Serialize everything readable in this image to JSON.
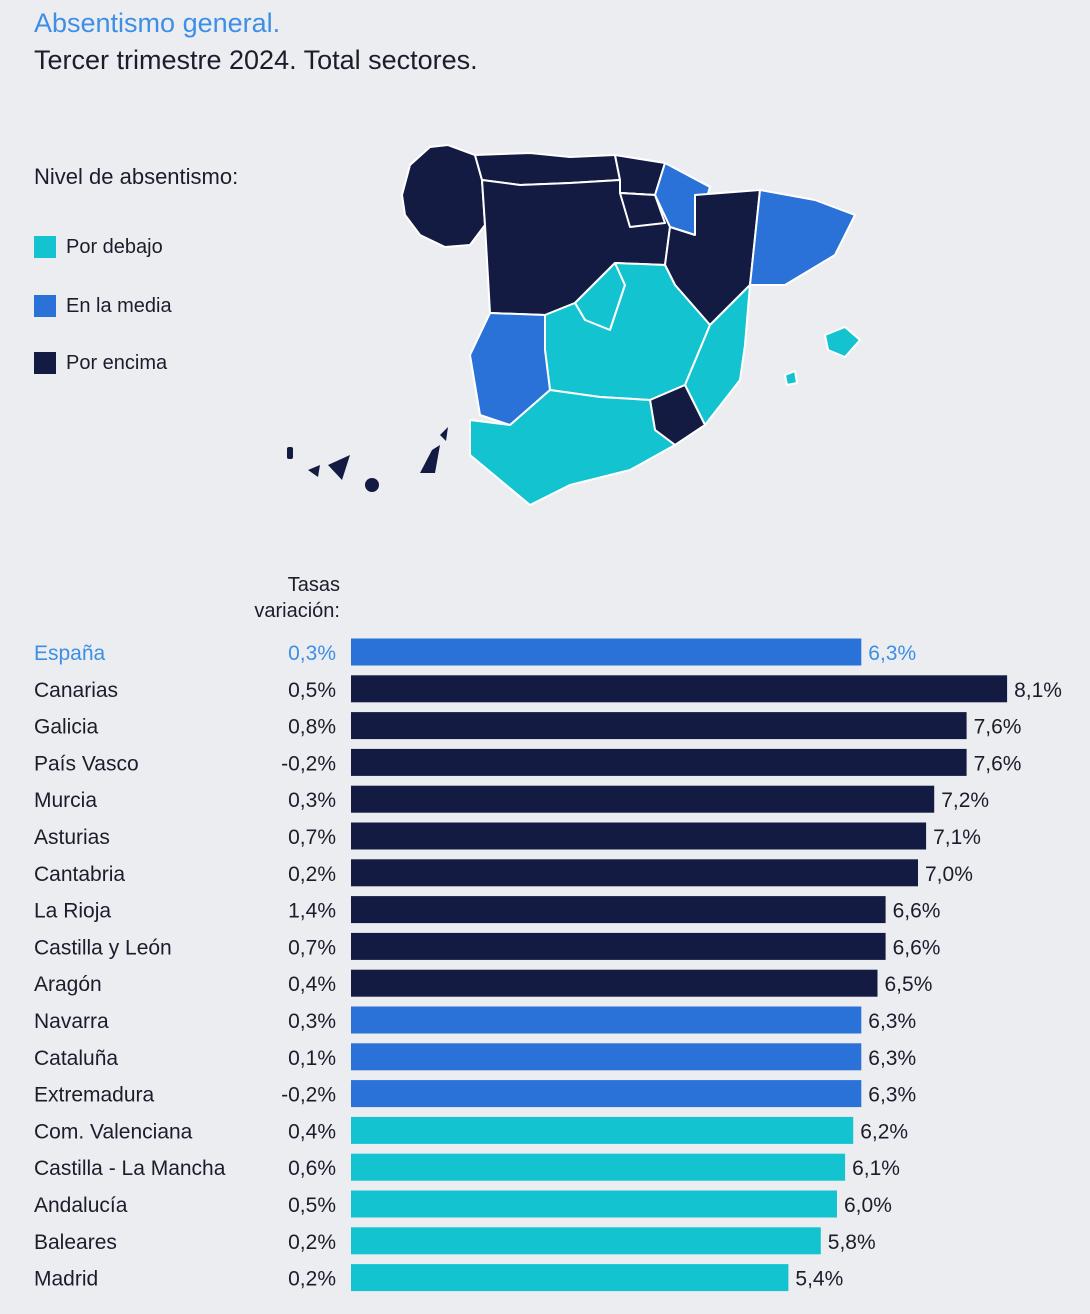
{
  "header": {
    "title": "Absentismo general.",
    "subtitle": "Tercer trimestre 2024. Total sectores."
  },
  "legend": {
    "title": "Nivel de absentismo:",
    "items": [
      {
        "label": "Por debajo",
        "color": "#13c3cf"
      },
      {
        "label": "En la media",
        "color": "#2a72d8"
      },
      {
        "label": "Por encima",
        "color": "#141b42"
      }
    ]
  },
  "colors": {
    "highlight_text": "#3d8fe6",
    "text": "#1a1d2b"
  },
  "chart_data": {
    "type": "bar",
    "orientation": "horizontal",
    "variation_header": "Tasas variación:",
    "variation_header_lines": [
      "Tasas",
      "variación:"
    ],
    "categories": [
      "España",
      "Canarias",
      "Galicia",
      "País Vasco",
      "Murcia",
      "Asturias",
      "Cantabria",
      "La Rioja",
      "Castilla y León",
      "Aragón",
      "Navarra",
      "Cataluña",
      "Extremadura",
      "Com. Valenciana",
      "Castilla - La Mancha",
      "Andalucía",
      "Baleares",
      "Madrid"
    ],
    "values": [
      6.3,
      8.1,
      7.6,
      7.6,
      7.2,
      7.1,
      7.0,
      6.6,
      6.6,
      6.5,
      6.3,
      6.3,
      6.3,
      6.2,
      6.1,
      6.0,
      5.8,
      5.4
    ],
    "value_labels": [
      "6,3%",
      "8,1%",
      "7,6%",
      "7,6%",
      "7,2%",
      "7,1%",
      "7,0%",
      "6,6%",
      "6,6%",
      "6,5%",
      "6,3%",
      "6,3%",
      "6,3%",
      "6,2%",
      "6,1%",
      "6,0%",
      "5,8%",
      "5,4%"
    ],
    "variation": [
      "0,3%",
      "0,5%",
      "0,8%",
      "-0,2%",
      "0,3%",
      "0,7%",
      "0,2%",
      "1,4%",
      "0,7%",
      "0,4%",
      "0,3%",
      "0,1%",
      "-0,2%",
      "0,4%",
      "0,6%",
      "0,5%",
      "0,2%",
      "0,2%"
    ],
    "level": [
      "media",
      "encima",
      "encima",
      "encima",
      "encima",
      "encima",
      "encima",
      "encima",
      "encima",
      "encima",
      "media",
      "media",
      "media",
      "debajo",
      "debajo",
      "debajo",
      "debajo",
      "debajo"
    ],
    "highlight": "España"
  }
}
